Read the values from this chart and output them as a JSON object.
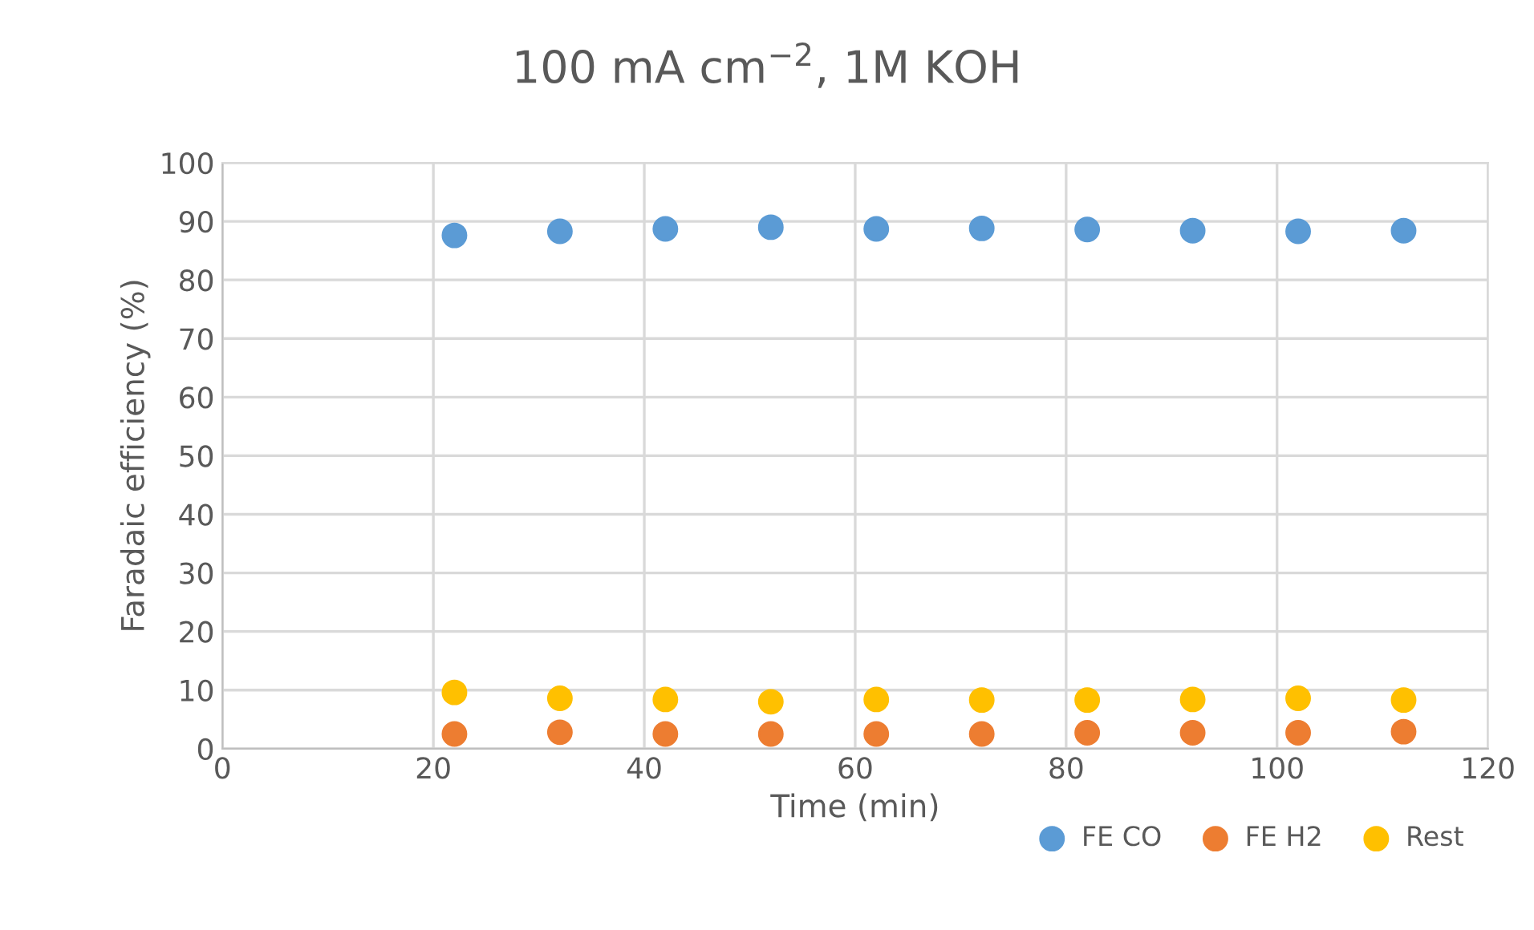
{
  "chart_data": {
    "type": "scatter",
    "title": "100 mA cm$^{−2}$, 1M KOH",
    "xlabel": "Time (min)",
    "ylabel": "Faradaic efficiency (%)",
    "x": [
      22,
      32,
      42,
      52,
      62,
      72,
      82,
      92,
      102,
      112
    ],
    "series": [
      {
        "name": "FE CO",
        "color": "#5b9bd5",
        "values": [
          87.6,
          88.3,
          88.7,
          89.0,
          88.7,
          88.8,
          88.6,
          88.4,
          88.3,
          88.4
        ]
      },
      {
        "name": "FE H2",
        "color": "#ed7d31",
        "values": [
          2.5,
          2.8,
          2.5,
          2.5,
          2.5,
          2.5,
          2.7,
          2.7,
          2.7,
          2.9
        ]
      },
      {
        "name": "Rest",
        "color": "#ffc000",
        "values": [
          9.6,
          8.6,
          8.4,
          8.0,
          8.4,
          8.3,
          8.3,
          8.4,
          8.6,
          8.3
        ]
      }
    ],
    "xlim": [
      0,
      120
    ],
    "xticks": [
      0,
      20,
      40,
      60,
      80,
      100,
      120
    ],
    "ylim": [
      0,
      100
    ],
    "yticks": [
      0,
      10,
      20,
      30,
      40,
      50,
      60,
      70,
      80,
      90,
      100
    ],
    "grid": true,
    "legend": "bottom right",
    "marker": "circle"
  }
}
